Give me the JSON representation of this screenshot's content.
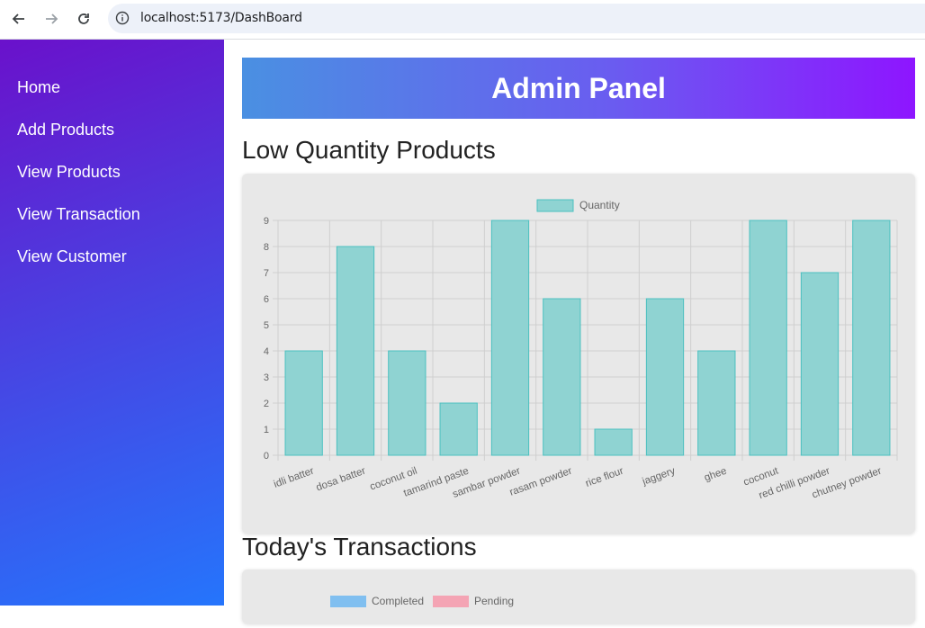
{
  "browser": {
    "url": "localhost:5173/DashBoard"
  },
  "sidebar": {
    "items": [
      {
        "label": "Home"
      },
      {
        "label": "Add Products"
      },
      {
        "label": "View Products"
      },
      {
        "label": "View Transaction"
      },
      {
        "label": "View Customer"
      }
    ]
  },
  "header": {
    "title": "Admin Panel"
  },
  "sections": {
    "low_quantity_title": "Low Quantity Products",
    "transactions_title": "Today's Transactions"
  },
  "colors": {
    "bar_fill": "#8fd3d2",
    "bar_stroke": "#4bc0c0",
    "completed": "#80bff0",
    "pending": "#f4a4b4"
  },
  "chart_data": [
    {
      "type": "bar",
      "categories": [
        "idli batter",
        "dosa batter",
        "coconut oil",
        "tamarind paste",
        "sambar powder",
        "rasam powder",
        "rice flour",
        "jaggery",
        "ghee",
        "coconut",
        "red chilli powder",
        "chutney powder"
      ],
      "series": [
        {
          "name": "Quantity",
          "values": [
            4,
            8,
            4,
            2,
            9,
            6,
            1,
            6,
            4,
            9,
            7,
            9
          ]
        }
      ],
      "ylim": [
        0,
        9
      ],
      "yticks": [
        0,
        1,
        2,
        3,
        4,
        5,
        6,
        7,
        8,
        9
      ],
      "legend": "top-center",
      "grid": true
    },
    {
      "type": "bar",
      "series": [
        {
          "name": "Completed"
        },
        {
          "name": "Pending"
        }
      ],
      "legend": "top-center"
    }
  ]
}
